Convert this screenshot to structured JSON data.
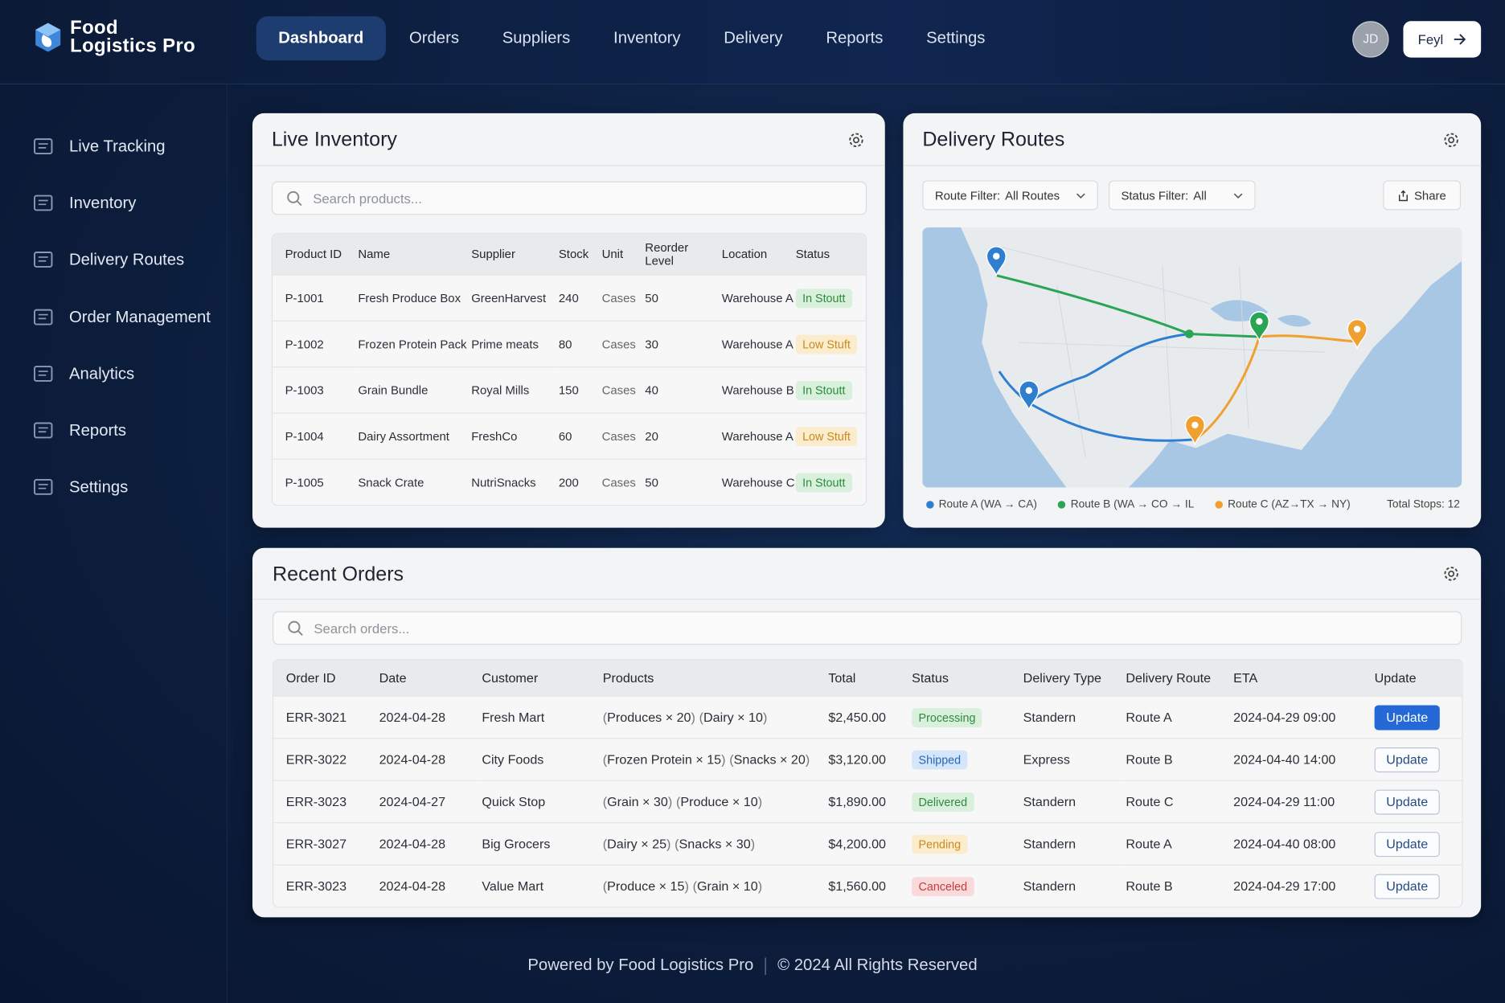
{
  "header": {
    "brand": [
      "Food",
      "Logistics Pro"
    ],
    "nav": [
      "Dashboard",
      "Orders",
      "Suppliers",
      "Inventory",
      "Delivery",
      "Reports",
      "Settings"
    ],
    "avatar": "JD",
    "action_button": "Feyl"
  },
  "sidebar": [
    "Live Tracking",
    "Inventory",
    "Delivery Routes",
    "Order Management",
    "Analytics",
    "Reports",
    "Settings"
  ],
  "inventory": {
    "title": "Live Inventory",
    "search_placeholder": "Search products...",
    "columns": [
      "Product ID",
      "Name",
      "Supplier",
      "Stock",
      "Unit",
      "Reorder Level",
      "Location",
      "Status"
    ],
    "rows": [
      [
        "P-1001",
        "Fresh Produce Box",
        "GreenHarvest",
        240,
        "Cases",
        50,
        "Warehouse A",
        "In Stoutt"
      ],
      [
        "P-1002",
        "Frozen Protein Pack",
        "Prime meats",
        80,
        "Cases",
        30,
        "Warehouse A",
        "Low Stuft"
      ],
      [
        "P-1003",
        "Grain Bundle",
        "Royal Mills",
        150,
        "Cases",
        40,
        "Warehouse B",
        "In Stoutt"
      ],
      [
        "P-1004",
        "Dairy Assortment",
        "FreshCo",
        60,
        "Cases",
        20,
        "Warehouse A",
        "Low Stuft"
      ],
      [
        "P-1005",
        "Snack Crate",
        "NutriSnacks",
        200,
        "Cases",
        50,
        "Warehouse C",
        "In Stoutt"
      ]
    ]
  },
  "routes": {
    "title": "Delivery Routes",
    "filters": [
      {
        "label": "Route Filter:",
        "value": "All Routes"
      },
      {
        "label": "Status Filter:",
        "value": "All"
      }
    ],
    "share": "Share",
    "legend": [
      {
        "name": "Route A (WA → CA)",
        "color": "#2f7fd0"
      },
      {
        "name": "Route B (WA → CO → IL",
        "color": "#2aa556"
      },
      {
        "name": "Route C (AZ→TX → NY)",
        "color": "#f0a02f"
      }
    ],
    "total_stops": "Total Stops: 12"
  },
  "orders": {
    "title": "Recent Orders",
    "search_placeholder": "Search orders...",
    "columns": [
      "Order ID",
      "Date",
      "Customer",
      "Products",
      "Total",
      "Status",
      "Delivery Type",
      "Delivery Route",
      "ETA",
      "Update"
    ],
    "update_label": "Update",
    "rows": [
      {
        "id": "ERR-3021",
        "date": "2024-04-28",
        "customer": "Fresh Mart",
        "products": [
          "Produces × 20",
          "Dairy × 10"
        ],
        "total": "$2,450.00",
        "status": "Processing",
        "type": "Standern",
        "route": "Route A",
        "eta": "2024-04-29 09:00"
      },
      {
        "id": "ERR-3022",
        "date": "2024-04-28",
        "customer": "City Foods",
        "products": [
          "Frozen Protein × 15",
          "Snacks × 20"
        ],
        "total": "$3,120.00",
        "status": "Shipped",
        "type": "Express",
        "route": "Route B",
        "eta": "2024-04-40 14:00"
      },
      {
        "id": "ERR-3023",
        "date": "2024-04-27",
        "customer": "Quick Stop",
        "products": [
          "Grain × 30",
          "Produce × 10"
        ],
        "total": "$1,890.00",
        "status": "Delivered",
        "type": "Standern",
        "route": "Route C",
        "eta": "2024-04-29 11:00"
      },
      {
        "id": "ERR-3027",
        "date": "2024-04-28",
        "customer": "Big Grocers",
        "products": [
          "Dairy × 25",
          "Snacks × 30"
        ],
        "total": "$4,200.00",
        "status": "Pending",
        "type": "Standern",
        "route": "Route A",
        "eta": "2024-04-40 08:00"
      },
      {
        "id": "ERR-3023",
        "date": "2024-04-28",
        "customer": "Value Mart",
        "products": [
          "Produce × 15",
          "Grain × 10"
        ],
        "total": "$1,560.00",
        "status": "Canceled",
        "type": "Standern",
        "route": "Route B",
        "eta": "2024-04-29 17:00"
      }
    ]
  },
  "footer": [
    "Powered by Food Logistics Pro",
    "© 2024 All Rights Reserved"
  ]
}
